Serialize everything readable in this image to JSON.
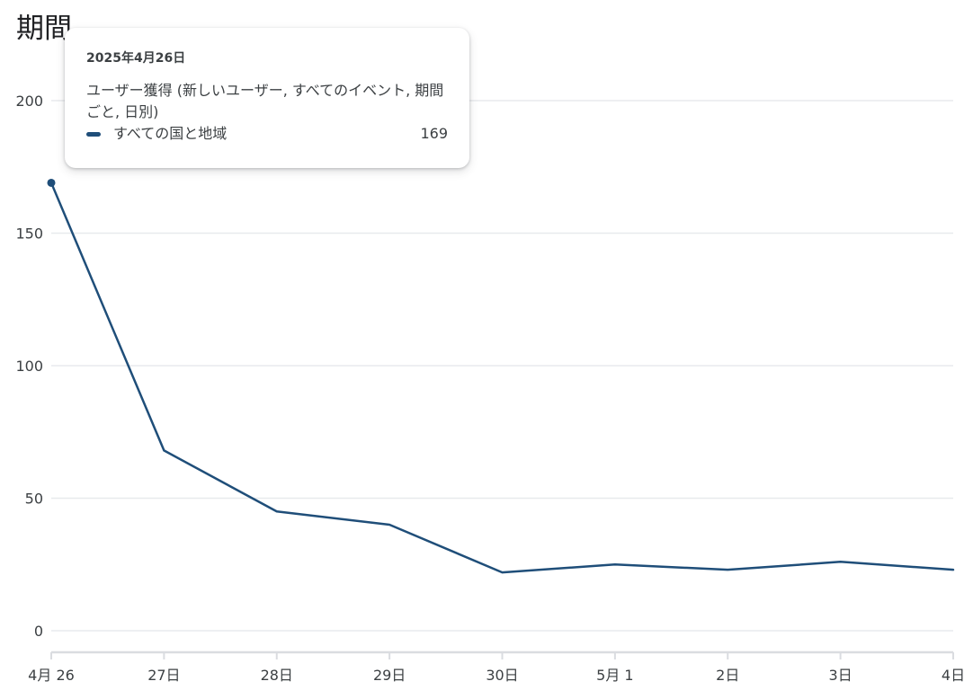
{
  "page": {
    "title": "期間"
  },
  "tooltip": {
    "date": "2025年4月26日",
    "metric": "ユーザー獲得 (新しいユーザー, すべてのイベント, 期間ごと, 日別)",
    "series_name": "すべての国と地域",
    "value": "169"
  },
  "colors": {
    "series": "#1f4e79",
    "grid": "#e8eaed",
    "axis": "#dadce0"
  },
  "chart_data": {
    "type": "line",
    "categories": [
      "4月 26",
      "27日",
      "28日",
      "29日",
      "30日",
      "5月 1",
      "2日",
      "3日",
      "4日"
    ],
    "series": [
      {
        "name": "すべての国と地域",
        "values": [
          169,
          68,
          45,
          40,
          22,
          25,
          23,
          26,
          23
        ]
      }
    ],
    "yticks": [
      0,
      50,
      100,
      150,
      200
    ],
    "ylim": [
      0,
      200
    ],
    "grid": true,
    "highlighted_index": 0
  }
}
